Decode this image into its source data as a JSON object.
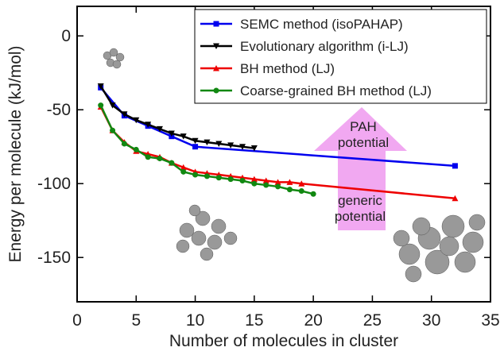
{
  "chart_data": {
    "type": "line",
    "xlabel": "Number of molecules in cluster",
    "ylabel": "Energy per molecule (kJ/mol)",
    "xlim": [
      0,
      35
    ],
    "ylim": [
      -180,
      20
    ],
    "xticks": [
      0,
      5,
      10,
      15,
      20,
      25,
      30,
      35
    ],
    "yticks": [
      -150,
      -100,
      -50,
      0
    ],
    "legend": "upper right",
    "annotations": [
      "PAH potential",
      "generic potential"
    ],
    "series": [
      {
        "name": "SEMC method (isoPAHAP)",
        "color": "#0000ee",
        "marker": "square",
        "x": [
          2,
          4,
          6,
          8,
          10,
          32
        ],
        "values": [
          -35,
          -54,
          -61,
          -68,
          -75,
          -88
        ]
      },
      {
        "name": "Evolutionary algorithm (i-LJ)",
        "color": "#000000",
        "marker": "triangle-down",
        "x": [
          2,
          3,
          4,
          5,
          6,
          7,
          8,
          9,
          10,
          11,
          12,
          13,
          14,
          15
        ],
        "values": [
          -34,
          -47,
          -53,
          -57,
          -60,
          -63,
          -66,
          -68,
          -71,
          -72,
          -73,
          -74,
          -75,
          -76
        ]
      },
      {
        "name": "BH method (LJ)",
        "color": "#ee0000",
        "marker": "triangle-up",
        "x": [
          2,
          3,
          4,
          5,
          6,
          7,
          8,
          9,
          10,
          11,
          12,
          13,
          14,
          15,
          16,
          17,
          18,
          19,
          32
        ],
        "values": [
          -48,
          -64,
          -72,
          -78,
          -80,
          -82,
          -86,
          -89,
          -92,
          -93,
          -94,
          -95,
          -96,
          -97,
          -98,
          -99,
          -99,
          -100,
          -110
        ]
      },
      {
        "name": "Coarse-grained BH method (LJ)",
        "color": "#118811",
        "marker": "circle",
        "x": [
          2,
          3,
          4,
          5,
          6,
          7,
          8,
          9,
          10,
          11,
          12,
          13,
          14,
          15,
          16,
          17,
          18,
          19,
          20
        ],
        "values": [
          -47,
          -64,
          -73,
          -77,
          -82,
          -83,
          -86,
          -92,
          -94,
          -95,
          -96,
          -97,
          -98,
          -100,
          -101,
          -102,
          -104,
          -105,
          -107
        ]
      }
    ]
  }
}
